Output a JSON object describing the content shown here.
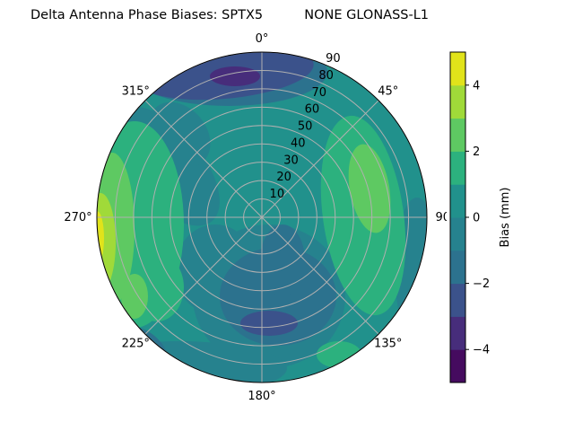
{
  "chart_data": {
    "type": "heatmap",
    "subtype": "polar filled contour",
    "title": "Delta Antenna Phase Biases: SPTX5          NONE GLONASS-L1",
    "colorbar_label": "Bias (mm)",
    "colormap": "viridis",
    "levels": [
      -5,
      -4,
      -3,
      -2,
      -1,
      0,
      1,
      2,
      3,
      4,
      5
    ],
    "level_colors": [
      "#450b5f",
      "#472d7b",
      "#3b528b",
      "#2c728e",
      "#26828e",
      "#21918c",
      "#2cb17e",
      "#5ec962",
      "#a0da39",
      "#e1e31a"
    ],
    "colorbar_ticks": [
      "−4",
      "−2",
      "0",
      "2",
      "4"
    ],
    "colorbar_tick_values": [
      -4,
      -2,
      0,
      2,
      4
    ],
    "angular_ticks": [
      "0°",
      "45°",
      "90°",
      "135°",
      "180°",
      "225°",
      "270°",
      "315°"
    ],
    "angular_tick_values": [
      0,
      45,
      90,
      135,
      180,
      225,
      270,
      315
    ],
    "radial_ticks": [
      "10",
      "20",
      "30",
      "40",
      "50",
      "60",
      "70",
      "80",
      "90"
    ],
    "radial_tick_values": [
      10,
      20,
      30,
      40,
      50,
      60,
      70,
      80,
      90
    ],
    "rlim": [
      0,
      90
    ],
    "theta_zero": "N",
    "theta_direction": "clockwise",
    "grid": true
  }
}
